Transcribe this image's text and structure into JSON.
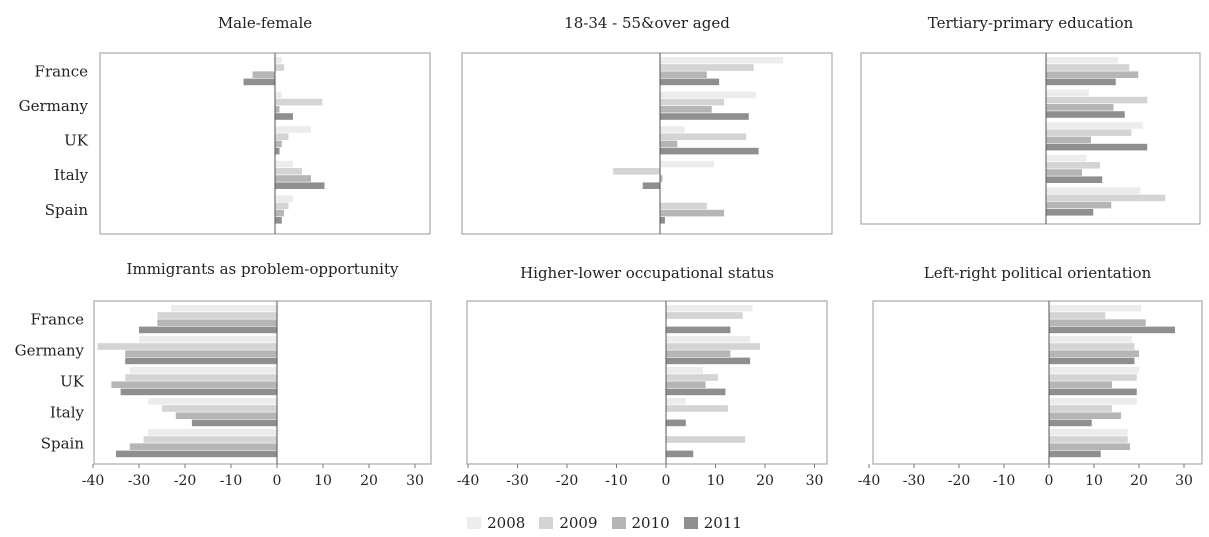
{
  "legend": {
    "items": [
      {
        "label": "2008",
        "color": "#ececec"
      },
      {
        "label": "2009",
        "color": "#d4d4d4"
      },
      {
        "label": "2010",
        "color": "#b5b5b5"
      },
      {
        "label": "2011",
        "color": "#8f8f8f"
      }
    ]
  },
  "chart_data": [
    {
      "type": "bar",
      "orientation": "horizontal",
      "title": "Male-female",
      "categories": [
        "France",
        "Germany",
        "UK",
        "Italy",
        "Spain"
      ],
      "xlim": [
        -40,
        35
      ],
      "series": [
        {
          "name": "2008",
          "values": [
            1.5,
            1.5,
            8,
            4,
            4
          ]
        },
        {
          "name": "2009",
          "values": [
            2,
            10.5,
            3,
            6,
            3
          ]
        },
        {
          "name": "2010",
          "values": [
            -5,
            1,
            1.5,
            8,
            2
          ]
        },
        {
          "name": "2011",
          "values": [
            -7,
            4,
            1,
            11,
            1.5
          ]
        }
      ]
    },
    {
      "type": "bar",
      "orientation": "horizontal",
      "title": "18-34 - 55&over aged",
      "categories": [
        "France",
        "Germany",
        "UK",
        "Italy",
        "Spain"
      ],
      "xlim": [
        -40,
        35
      ],
      "series": [
        {
          "name": "2008",
          "values": [
            25,
            19.5,
            5,
            11,
            0
          ]
        },
        {
          "name": "2009",
          "values": [
            19,
            13,
            17.5,
            -9.5,
            9.5
          ]
        },
        {
          "name": "2010",
          "values": [
            9.5,
            10.5,
            3.5,
            0.5,
            13
          ]
        },
        {
          "name": "2011",
          "values": [
            12,
            18,
            20,
            -3.5,
            1
          ]
        }
      ]
    },
    {
      "type": "bar",
      "orientation": "horizontal",
      "title": "Tertiary-primary education",
      "categories": [
        "France",
        "Germany",
        "UK",
        "Italy",
        "Spain"
      ],
      "xlim": [
        -40,
        35
      ],
      "series": [
        {
          "name": "2008",
          "values": [
            16,
            9.5,
            21.5,
            9,
            21
          ]
        },
        {
          "name": "2009",
          "values": [
            18.5,
            22.5,
            19,
            12,
            26.5
          ]
        },
        {
          "name": "2010",
          "values": [
            20.5,
            15,
            10,
            8,
            14.5
          ]
        },
        {
          "name": "2011",
          "values": [
            15.5,
            17.5,
            22.5,
            12.5,
            10.5
          ]
        }
      ]
    },
    {
      "type": "bar",
      "orientation": "horizontal",
      "title": "Immigrants as problem-opportunity",
      "categories": [
        "France",
        "Germany",
        "UK",
        "Italy",
        "Spain"
      ],
      "xlim": [
        -40,
        35
      ],
      "xticks": [
        -40,
        -30,
        -20,
        -10,
        0,
        10,
        20,
        30
      ],
      "series": [
        {
          "name": "2008",
          "values": [
            -23,
            -30,
            -32,
            -28,
            -28
          ]
        },
        {
          "name": "2009",
          "values": [
            -26,
            -39,
            -33,
            -25,
            -29
          ]
        },
        {
          "name": "2010",
          "values": [
            -26,
            -33,
            -36,
            -22,
            -32
          ]
        },
        {
          "name": "2011",
          "values": [
            -30,
            -33,
            -34,
            -18.5,
            -35
          ]
        }
      ]
    },
    {
      "type": "bar",
      "orientation": "horizontal",
      "title": "Higher-lower occupational status",
      "categories": [
        "France",
        "Germany",
        "UK",
        "Italy",
        "Spain"
      ],
      "xlim": [
        -40,
        35
      ],
      "xticks": [
        -40,
        -30,
        -20,
        -10,
        0,
        10,
        20,
        30
      ],
      "series": [
        {
          "name": "2008",
          "values": [
            17.5,
            17,
            7.5,
            4,
            0
          ]
        },
        {
          "name": "2009",
          "values": [
            15.5,
            19,
            10.5,
            12.5,
            16
          ]
        },
        {
          "name": "2010",
          "values": [
            0,
            13,
            8,
            0,
            0
          ]
        },
        {
          "name": "2011",
          "values": [
            13,
            17,
            12,
            4,
            5.5
          ]
        }
      ]
    },
    {
      "type": "bar",
      "orientation": "horizontal",
      "title": "Left-right political orientation",
      "categories": [
        "France",
        "Germany",
        "UK",
        "Italy",
        "Spain"
      ],
      "xlim": [
        -40,
        35
      ],
      "xticks": [
        -40,
        -30,
        -20,
        -10,
        0,
        10,
        20,
        30
      ],
      "series": [
        {
          "name": "2008",
          "values": [
            20.5,
            18.5,
            20,
            19.5,
            17.5
          ]
        },
        {
          "name": "2009",
          "values": [
            12.5,
            19,
            19.5,
            14,
            17.5
          ]
        },
        {
          "name": "2010",
          "values": [
            21.5,
            20,
            14,
            16,
            18
          ]
        },
        {
          "name": "2011",
          "values": [
            28,
            19,
            19.5,
            9.5,
            11.5
          ]
        }
      ]
    }
  ]
}
